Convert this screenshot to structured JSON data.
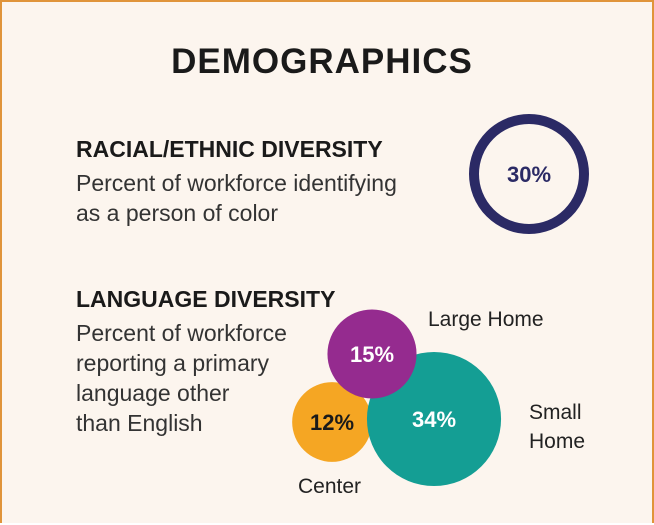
{
  "title": "DEMOGRAPHICS",
  "racial": {
    "heading": "RACIAL/ETHNIC DIVERSITY",
    "description": "Percent of workforce identifying\nas a person of color",
    "value": 30,
    "value_label": "30%",
    "color": "#2b2a65"
  },
  "language": {
    "type": "bubble",
    "heading": "LANGUAGE DIVERSITY",
    "description": "Percent of workforce\nreporting a primary\nlanguage other\nthan English",
    "categories": [
      "Large Home",
      "Small\nHome",
      "Center"
    ],
    "values": [
      15,
      34,
      12
    ],
    "value_labels": [
      "15%",
      "34%",
      "12%"
    ],
    "colors": [
      "#952b8f",
      "#149e94",
      "#f5a623"
    ]
  }
}
